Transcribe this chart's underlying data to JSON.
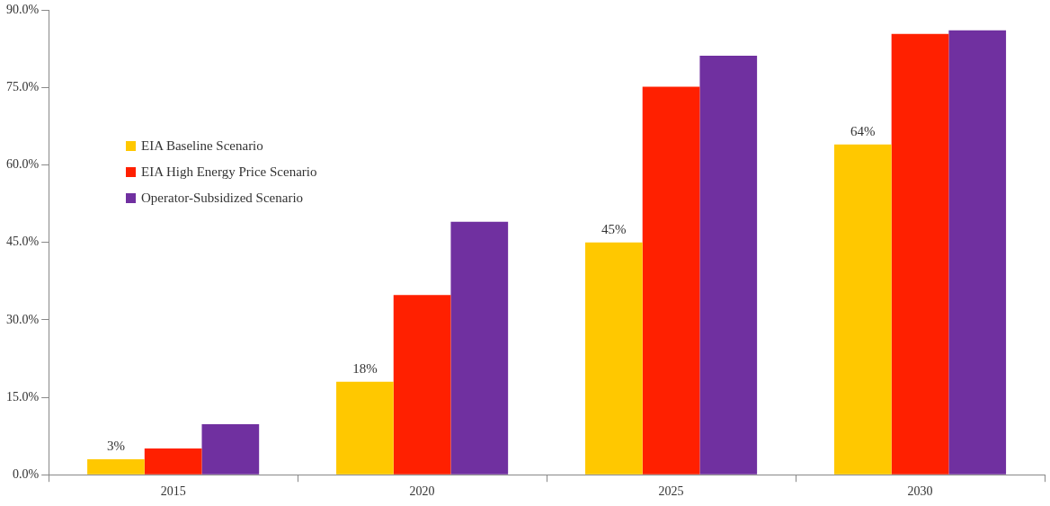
{
  "chart_data": {
    "type": "bar",
    "categories": [
      "2015",
      "2020",
      "2025",
      "2030"
    ],
    "series": [
      {
        "name": "EIA Baseline Scenario",
        "color": "#ffc800",
        "values": [
          3,
          18,
          45,
          64
        ],
        "value_labels": [
          "3%",
          "18%",
          "45%",
          "64%"
        ]
      },
      {
        "name": "EIA High Energy Price Scenario",
        "color": "#ff2000",
        "values": [
          5.1,
          34.8,
          75.2,
          85.4
        ]
      },
      {
        "name": "Operator-Subsidized Scenario",
        "color": "#7030a0",
        "values": [
          9.8,
          49.0,
          81.2,
          86.1
        ]
      }
    ],
    "ylim": [
      0,
      90
    ],
    "yticks": [
      {
        "value": 0,
        "label": "0.0%"
      },
      {
        "value": 15,
        "label": "15.0%"
      },
      {
        "value": 30,
        "label": "30.0%"
      },
      {
        "value": 45,
        "label": "45.0%"
      },
      {
        "value": 60,
        "label": "60.0%"
      },
      {
        "value": 75,
        "label": "75.0%"
      },
      {
        "value": 90,
        "label": "90.0%"
      }
    ],
    "grid": false,
    "legend": "top left"
  }
}
